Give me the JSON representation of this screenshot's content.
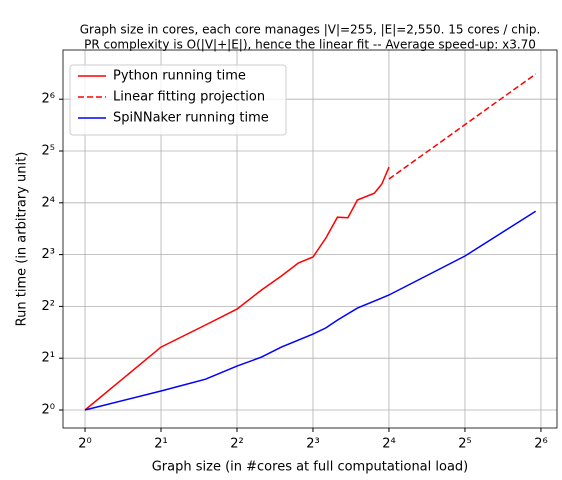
{
  "chart_data": {
    "type": "line",
    "title": "Graph size in cores, each core manages |V|=255, |E|=2,550. 15 cores / chip.",
    "subtitle": "PR complexity is O(|V|+|E|), hence the linear fit  --  Average speed-up: x3.70",
    "x_label": "Graph size (in #cores at full computational load)",
    "y_label": "Run time (in arbitrary unit)",
    "xscale": "log2",
    "yscale": "log2",
    "xlim": [
      0.818,
      74.1
    ],
    "ylim": [
      0.786,
      123.6
    ],
    "xticks": [
      {
        "value": 1,
        "label": "2⁰"
      },
      {
        "value": 2,
        "label": "2¹"
      },
      {
        "value": 4,
        "label": "2²"
      },
      {
        "value": 8,
        "label": "2³"
      },
      {
        "value": 16,
        "label": "2⁴"
      },
      {
        "value": 32,
        "label": "2⁵"
      },
      {
        "value": 64,
        "label": "2⁶"
      }
    ],
    "yticks": [
      {
        "value": 1,
        "label": "2⁰"
      },
      {
        "value": 2,
        "label": "2¹"
      },
      {
        "value": 4,
        "label": "2²"
      },
      {
        "value": 8,
        "label": "2³"
      },
      {
        "value": 16,
        "label": "2⁴"
      },
      {
        "value": 32,
        "label": "2⁵"
      },
      {
        "value": 64,
        "label": "2⁶"
      }
    ],
    "grid": true,
    "legend": "upper left",
    "series": [
      {
        "name": "Python running time",
        "color": "#ff0000",
        "dash": "solid",
        "x": [
          1,
          2,
          3,
          4,
          5,
          6,
          7,
          8,
          9,
          10,
          11,
          12,
          14,
          15,
          16
        ],
        "values": [
          1,
          2.32,
          3.12,
          3.86,
          4.98,
          6.01,
          7.15,
          7.75,
          9.99,
          13.2,
          13.1,
          16.6,
          18.2,
          20.6,
          25.8
        ]
      },
      {
        "name": "Linear fitting projection",
        "color": "#ff0000",
        "dash": "dashed",
        "x": [
          16,
          61
        ],
        "values": [
          22.0,
          89.6
        ]
      },
      {
        "name": "SpiNNaker running time",
        "color": "#0000ff",
        "dash": "solid",
        "x": [
          1,
          2,
          3,
          4,
          5,
          6,
          8,
          9,
          10,
          12,
          16,
          32,
          61
        ],
        "values": [
          1,
          1.29,
          1.51,
          1.8,
          2.03,
          2.32,
          2.76,
          3.0,
          3.33,
          3.91,
          4.66,
          7.85,
          14.3
        ]
      }
    ]
  }
}
